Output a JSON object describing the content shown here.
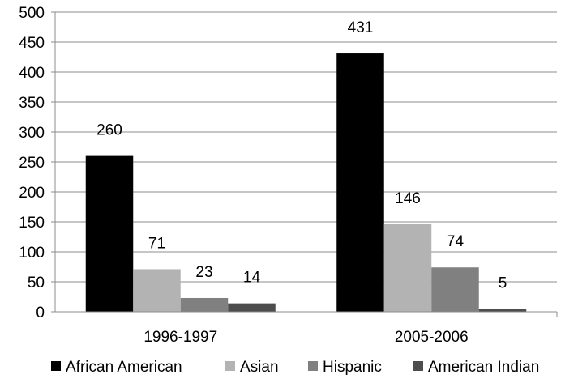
{
  "chart_data": {
    "type": "bar",
    "title": "",
    "xlabel": "",
    "ylabel": "",
    "ylim": [
      0,
      500
    ],
    "yticks": [
      0,
      50,
      100,
      150,
      200,
      250,
      300,
      350,
      400,
      450,
      500
    ],
    "grid": true,
    "legend_position": "bottom",
    "categories": [
      "1996-1997",
      "2005-2006"
    ],
    "series": [
      {
        "name": "African American",
        "values": [
          260,
          431
        ],
        "color": "#000000"
      },
      {
        "name": "Asian",
        "values": [
          71,
          146
        ],
        "color": "#b3b3b3"
      },
      {
        "name": "Hispanic",
        "values": [
          23,
          74
        ],
        "color": "#808080"
      },
      {
        "name": "American Indian",
        "values": [
          14,
          5
        ],
        "color": "#4d4d4d"
      }
    ],
    "data_labels": [
      [
        "260",
        "71",
        "23",
        "14"
      ],
      [
        "431",
        "146",
        "74",
        "5"
      ]
    ]
  }
}
